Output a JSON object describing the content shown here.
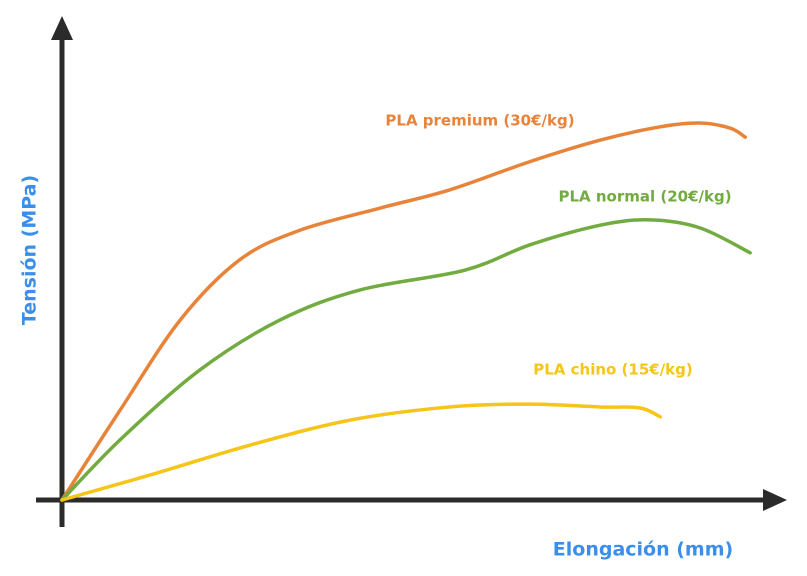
{
  "chart_data": {
    "type": "line",
    "y_label": "Tensión (MPa)",
    "x_label": "Elongación (mm)",
    "xlim": [
      0,
      100
    ],
    "ylim": [
      0,
      100
    ],
    "series": [
      {
        "name": "PLA premium (30€/kg)",
        "color": "#e8833a",
        "x": [
          0,
          8.2,
          16.7,
          25.1,
          33.6,
          44.9,
          54.8,
          66.1,
          76.1,
          84.5,
          90.1,
          94.4,
          96.5
        ],
        "values": [
          0,
          19.1,
          38.3,
          51.1,
          57.4,
          62.1,
          66,
          72,
          76.6,
          79.4,
          80.2,
          79.1,
          77.2
        ]
      },
      {
        "name": "PLA normal (20€/kg)",
        "color": "#72ab3f",
        "x": [
          0,
          8.2,
          19.5,
          30.8,
          42.1,
          56.9,
          66.1,
          76.1,
          83.1,
          90.1,
          97.2
        ],
        "values": [
          0,
          12.8,
          27.7,
          38.3,
          44.7,
          48.9,
          54.3,
          58.5,
          59.6,
          57.9,
          52.6
        ]
      },
      {
        "name": "PLA chino (15€/kg)",
        "color": "#f5c518",
        "x": [
          0,
          12.4,
          26.6,
          40.7,
          54.8,
          66.1,
          76,
          81.6,
          84.5
        ],
        "values": [
          0,
          5.3,
          11.7,
          17,
          19.8,
          20.4,
          19.8,
          19.6,
          17.7
        ]
      }
    ]
  }
}
